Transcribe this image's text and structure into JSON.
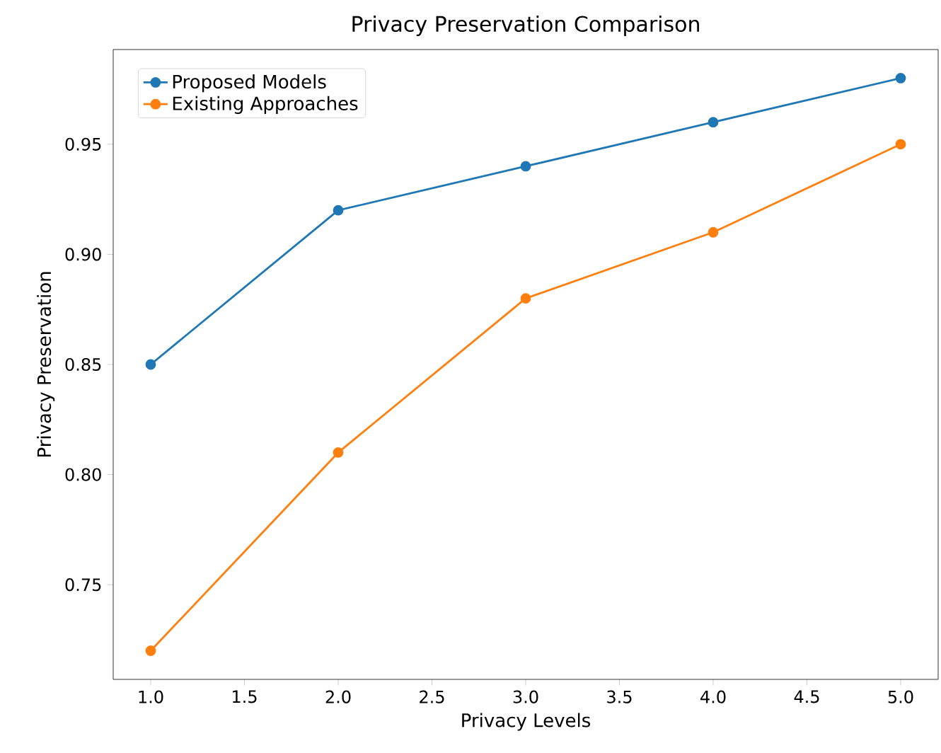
{
  "chart_data": {
    "type": "line",
    "title": "Privacy Preservation Comparison",
    "xlabel": "Privacy Levels",
    "ylabel": "Privacy Preservation",
    "x": [
      1,
      2,
      3,
      4,
      5
    ],
    "series": [
      {
        "name": "Proposed Models",
        "color": "#1f77b4",
        "values": [
          0.85,
          0.92,
          0.94,
          0.96,
          0.98
        ]
      },
      {
        "name": "Existing Approaches",
        "color": "#ff7f0e",
        "values": [
          0.72,
          0.81,
          0.88,
          0.91,
          0.95
        ]
      }
    ],
    "xlim": [
      0.8,
      5.2
    ],
    "ylim": [
      0.707,
      0.993
    ],
    "xticks": [
      {
        "value": 1,
        "label": "1.0"
      },
      {
        "value": 1.5,
        "label": "1.5"
      },
      {
        "value": 2,
        "label": "2.0"
      },
      {
        "value": 2.5,
        "label": "2.5"
      },
      {
        "value": 3,
        "label": "3.0"
      },
      {
        "value": 3.5,
        "label": "3.5"
      },
      {
        "value": 4,
        "label": "4.0"
      },
      {
        "value": 4.5,
        "label": "4.5"
      },
      {
        "value": 5,
        "label": "5.0"
      }
    ],
    "yticks": [
      0.75,
      {
        "value": 0.8,
        "label": "0.80"
      },
      0.85,
      {
        "value": 0.9,
        "label": "0.90"
      },
      0.95
    ],
    "legend": "top left",
    "marker": "circle",
    "line_style": "solid"
  }
}
